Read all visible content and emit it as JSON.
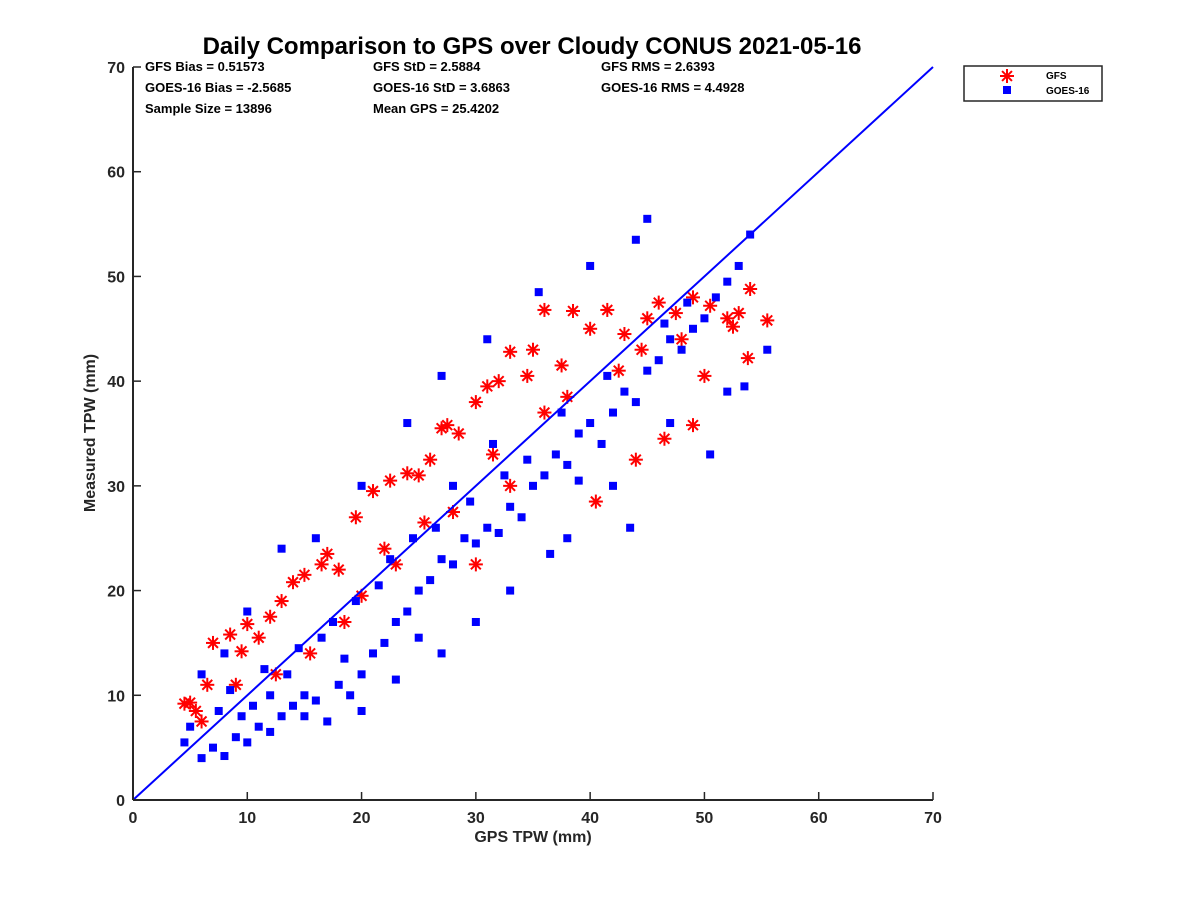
{
  "chart_data": {
    "type": "scatter",
    "title": "Daily Comparison to GPS over Cloudy CONUS 2021-05-16",
    "xlabel": "GPS TPW (mm)",
    "ylabel": "Measured TPW (mm)",
    "xlim": [
      0,
      70
    ],
    "ylim": [
      0,
      70
    ],
    "xticks": [
      "0",
      "10",
      "20",
      "30",
      "40",
      "50",
      "60",
      "70"
    ],
    "yticks": [
      "0",
      "10",
      "20",
      "30",
      "40",
      "50",
      "60",
      "70"
    ],
    "grid": false,
    "legend_position": "outside-top-right",
    "reference_line": {
      "x": [
        0,
        70
      ],
      "y": [
        0,
        70
      ],
      "color": "#0000ff"
    },
    "stats": {
      "gfs_bias": "GFS Bias = 0.51573",
      "gfs_std": "GFS StD = 2.5884",
      "gfs_rms": "GFS RMS = 2.6393",
      "goes_bias": "GOES-16 Bias = -2.5685",
      "goes_std": "GOES-16 StD = 3.6863",
      "goes_rms": "GOES-16 RMS = 4.4928",
      "sample_size": "Sample Size = 13896",
      "mean_gps": "Mean GPS = 25.4202"
    },
    "series": [
      {
        "name": "GFS",
        "marker": "asterisk",
        "color": "#ff0000",
        "points": [
          [
            4.5,
            9.2
          ],
          [
            5.0,
            9.3
          ],
          [
            5.5,
            8.5
          ],
          [
            6.5,
            11.0
          ],
          [
            7.0,
            15.0
          ],
          [
            8.5,
            15.8
          ],
          [
            9.5,
            14.2
          ],
          [
            10.0,
            16.8
          ],
          [
            11.0,
            15.5
          ],
          [
            12.0,
            17.5
          ],
          [
            13.0,
            19.0
          ],
          [
            14.0,
            20.8
          ],
          [
            15.0,
            21.5
          ],
          [
            16.5,
            22.5
          ],
          [
            17.0,
            23.5
          ],
          [
            18.0,
            22.0
          ],
          [
            19.5,
            27.0
          ],
          [
            21.0,
            29.5
          ],
          [
            22.5,
            30.5
          ],
          [
            24.0,
            31.2
          ],
          [
            25.0,
            31.0
          ],
          [
            26.0,
            32.5
          ],
          [
            27.0,
            35.5
          ],
          [
            27.5,
            35.8
          ],
          [
            28.5,
            35.0
          ],
          [
            30.0,
            38.0
          ],
          [
            31.0,
            39.5
          ],
          [
            32.0,
            40.0
          ],
          [
            33.0,
            42.8
          ],
          [
            34.5,
            40.5
          ],
          [
            35.0,
            43.0
          ],
          [
            36.0,
            46.8
          ],
          [
            37.5,
            41.5
          ],
          [
            38.5,
            46.7
          ],
          [
            40.0,
            45.0
          ],
          [
            41.5,
            46.8
          ],
          [
            43.0,
            44.5
          ],
          [
            45.0,
            46.0
          ],
          [
            46.0,
            47.5
          ],
          [
            47.5,
            46.5
          ],
          [
            49.0,
            48.0
          ],
          [
            50.5,
            47.2
          ],
          [
            52.0,
            46.0
          ],
          [
            52.5,
            45.2
          ],
          [
            53.0,
            46.5
          ],
          [
            54.0,
            48.8
          ],
          [
            55.5,
            45.8
          ],
          [
            53.8,
            42.2
          ],
          [
            50.0,
            40.5
          ],
          [
            49.0,
            35.8
          ],
          [
            46.5,
            34.5
          ],
          [
            44.0,
            32.5
          ],
          [
            40.5,
            28.5
          ],
          [
            33.0,
            30.0
          ],
          [
            30.0,
            22.5
          ],
          [
            25.5,
            26.5
          ],
          [
            22.0,
            24.0
          ],
          [
            20.0,
            19.5
          ],
          [
            15.5,
            14.0
          ],
          [
            12.5,
            12.0
          ],
          [
            9.0,
            11.0
          ],
          [
            6.0,
            7.5
          ],
          [
            28.0,
            27.5
          ],
          [
            36.0,
            37.0
          ],
          [
            42.5,
            41.0
          ],
          [
            18.5,
            17.0
          ],
          [
            23.0,
            22.5
          ],
          [
            31.5,
            33.0
          ],
          [
            38.0,
            38.5
          ],
          [
            44.5,
            43.0
          ],
          [
            48.0,
            44.0
          ]
        ]
      },
      {
        "name": "GOES-16",
        "marker": "square",
        "color": "#0000ff",
        "points": [
          [
            4.5,
            5.5
          ],
          [
            5.0,
            7.0
          ],
          [
            6.0,
            4.0
          ],
          [
            7.0,
            5.0
          ],
          [
            8.0,
            4.2
          ],
          [
            9.0,
            6.0
          ],
          [
            10.0,
            5.5
          ],
          [
            11.0,
            7.0
          ],
          [
            12.0,
            6.5
          ],
          [
            13.0,
            8.0
          ],
          [
            14.0,
            9.0
          ],
          [
            15.0,
            10.0
          ],
          [
            16.0,
            9.5
          ],
          [
            17.0,
            7.5
          ],
          [
            18.0,
            11.0
          ],
          [
            19.0,
            10.0
          ],
          [
            20.0,
            12.0
          ],
          [
            21.0,
            14.0
          ],
          [
            22.0,
            15.0
          ],
          [
            23.0,
            17.0
          ],
          [
            24.0,
            18.0
          ],
          [
            25.0,
            20.0
          ],
          [
            26.0,
            21.0
          ],
          [
            27.0,
            23.0
          ],
          [
            28.0,
            22.5
          ],
          [
            29.0,
            25.0
          ],
          [
            30.0,
            24.5
          ],
          [
            31.0,
            26.0
          ],
          [
            32.0,
            25.5
          ],
          [
            33.0,
            28.0
          ],
          [
            34.0,
            27.0
          ],
          [
            35.0,
            30.0
          ],
          [
            36.0,
            31.0
          ],
          [
            37.0,
            33.0
          ],
          [
            38.0,
            32.0
          ],
          [
            39.0,
            35.0
          ],
          [
            40.0,
            36.0
          ],
          [
            41.0,
            34.0
          ],
          [
            42.0,
            37.0
          ],
          [
            43.0,
            39.0
          ],
          [
            44.0,
            38.0
          ],
          [
            45.0,
            41.0
          ],
          [
            46.0,
            42.0
          ],
          [
            47.0,
            44.0
          ],
          [
            48.0,
            43.0
          ],
          [
            49.0,
            45.0
          ],
          [
            50.0,
            46.0
          ],
          [
            51.0,
            48.0
          ],
          [
            52.0,
            49.5
          ],
          [
            53.0,
            51.0
          ],
          [
            54.0,
            54.0
          ],
          [
            45.0,
            55.5
          ],
          [
            44.0,
            53.5
          ],
          [
            40.0,
            51.0
          ],
          [
            35.5,
            48.5
          ],
          [
            31.0,
            44.0
          ],
          [
            27.0,
            40.5
          ],
          [
            24.0,
            36.0
          ],
          [
            20.0,
            30.0
          ],
          [
            16.0,
            25.0
          ],
          [
            13.0,
            24.0
          ],
          [
            10.0,
            18.0
          ],
          [
            8.0,
            14.0
          ],
          [
            6.0,
            12.0
          ],
          [
            50.5,
            33.0
          ],
          [
            52.0,
            39.0
          ],
          [
            55.5,
            43.0
          ],
          [
            53.5,
            39.5
          ],
          [
            36.5,
            23.5
          ],
          [
            43.5,
            26.0
          ],
          [
            38.0,
            25.0
          ],
          [
            30.0,
            17.0
          ],
          [
            27.0,
            14.0
          ],
          [
            20.0,
            8.5
          ],
          [
            23.0,
            11.5
          ],
          [
            33.0,
            20.0
          ],
          [
            39.0,
            30.5
          ],
          [
            47.0,
            36.0
          ],
          [
            42.0,
            30.0
          ],
          [
            25.0,
            15.5
          ],
          [
            18.5,
            13.5
          ],
          [
            15.0,
            8.0
          ],
          [
            12.0,
            10.0
          ],
          [
            9.5,
            8.0
          ],
          [
            7.5,
            8.5
          ],
          [
            11.5,
            12.5
          ],
          [
            14.5,
            14.5
          ],
          [
            17.5,
            17.0
          ],
          [
            21.5,
            20.5
          ],
          [
            26.5,
            26.0
          ],
          [
            29.5,
            28.5
          ],
          [
            34.5,
            32.5
          ],
          [
            41.5,
            40.5
          ],
          [
            46.5,
            45.5
          ],
          [
            48.5,
            47.5
          ],
          [
            37.5,
            37.0
          ],
          [
            32.5,
            31.0
          ],
          [
            28.0,
            30.0
          ],
          [
            24.5,
            25.0
          ],
          [
            19.5,
            19.0
          ],
          [
            16.5,
            15.5
          ],
          [
            13.5,
            12.0
          ],
          [
            10.5,
            9.0
          ],
          [
            8.5,
            10.5
          ],
          [
            22.5,
            23.0
          ],
          [
            31.5,
            34.0
          ]
        ]
      }
    ]
  }
}
